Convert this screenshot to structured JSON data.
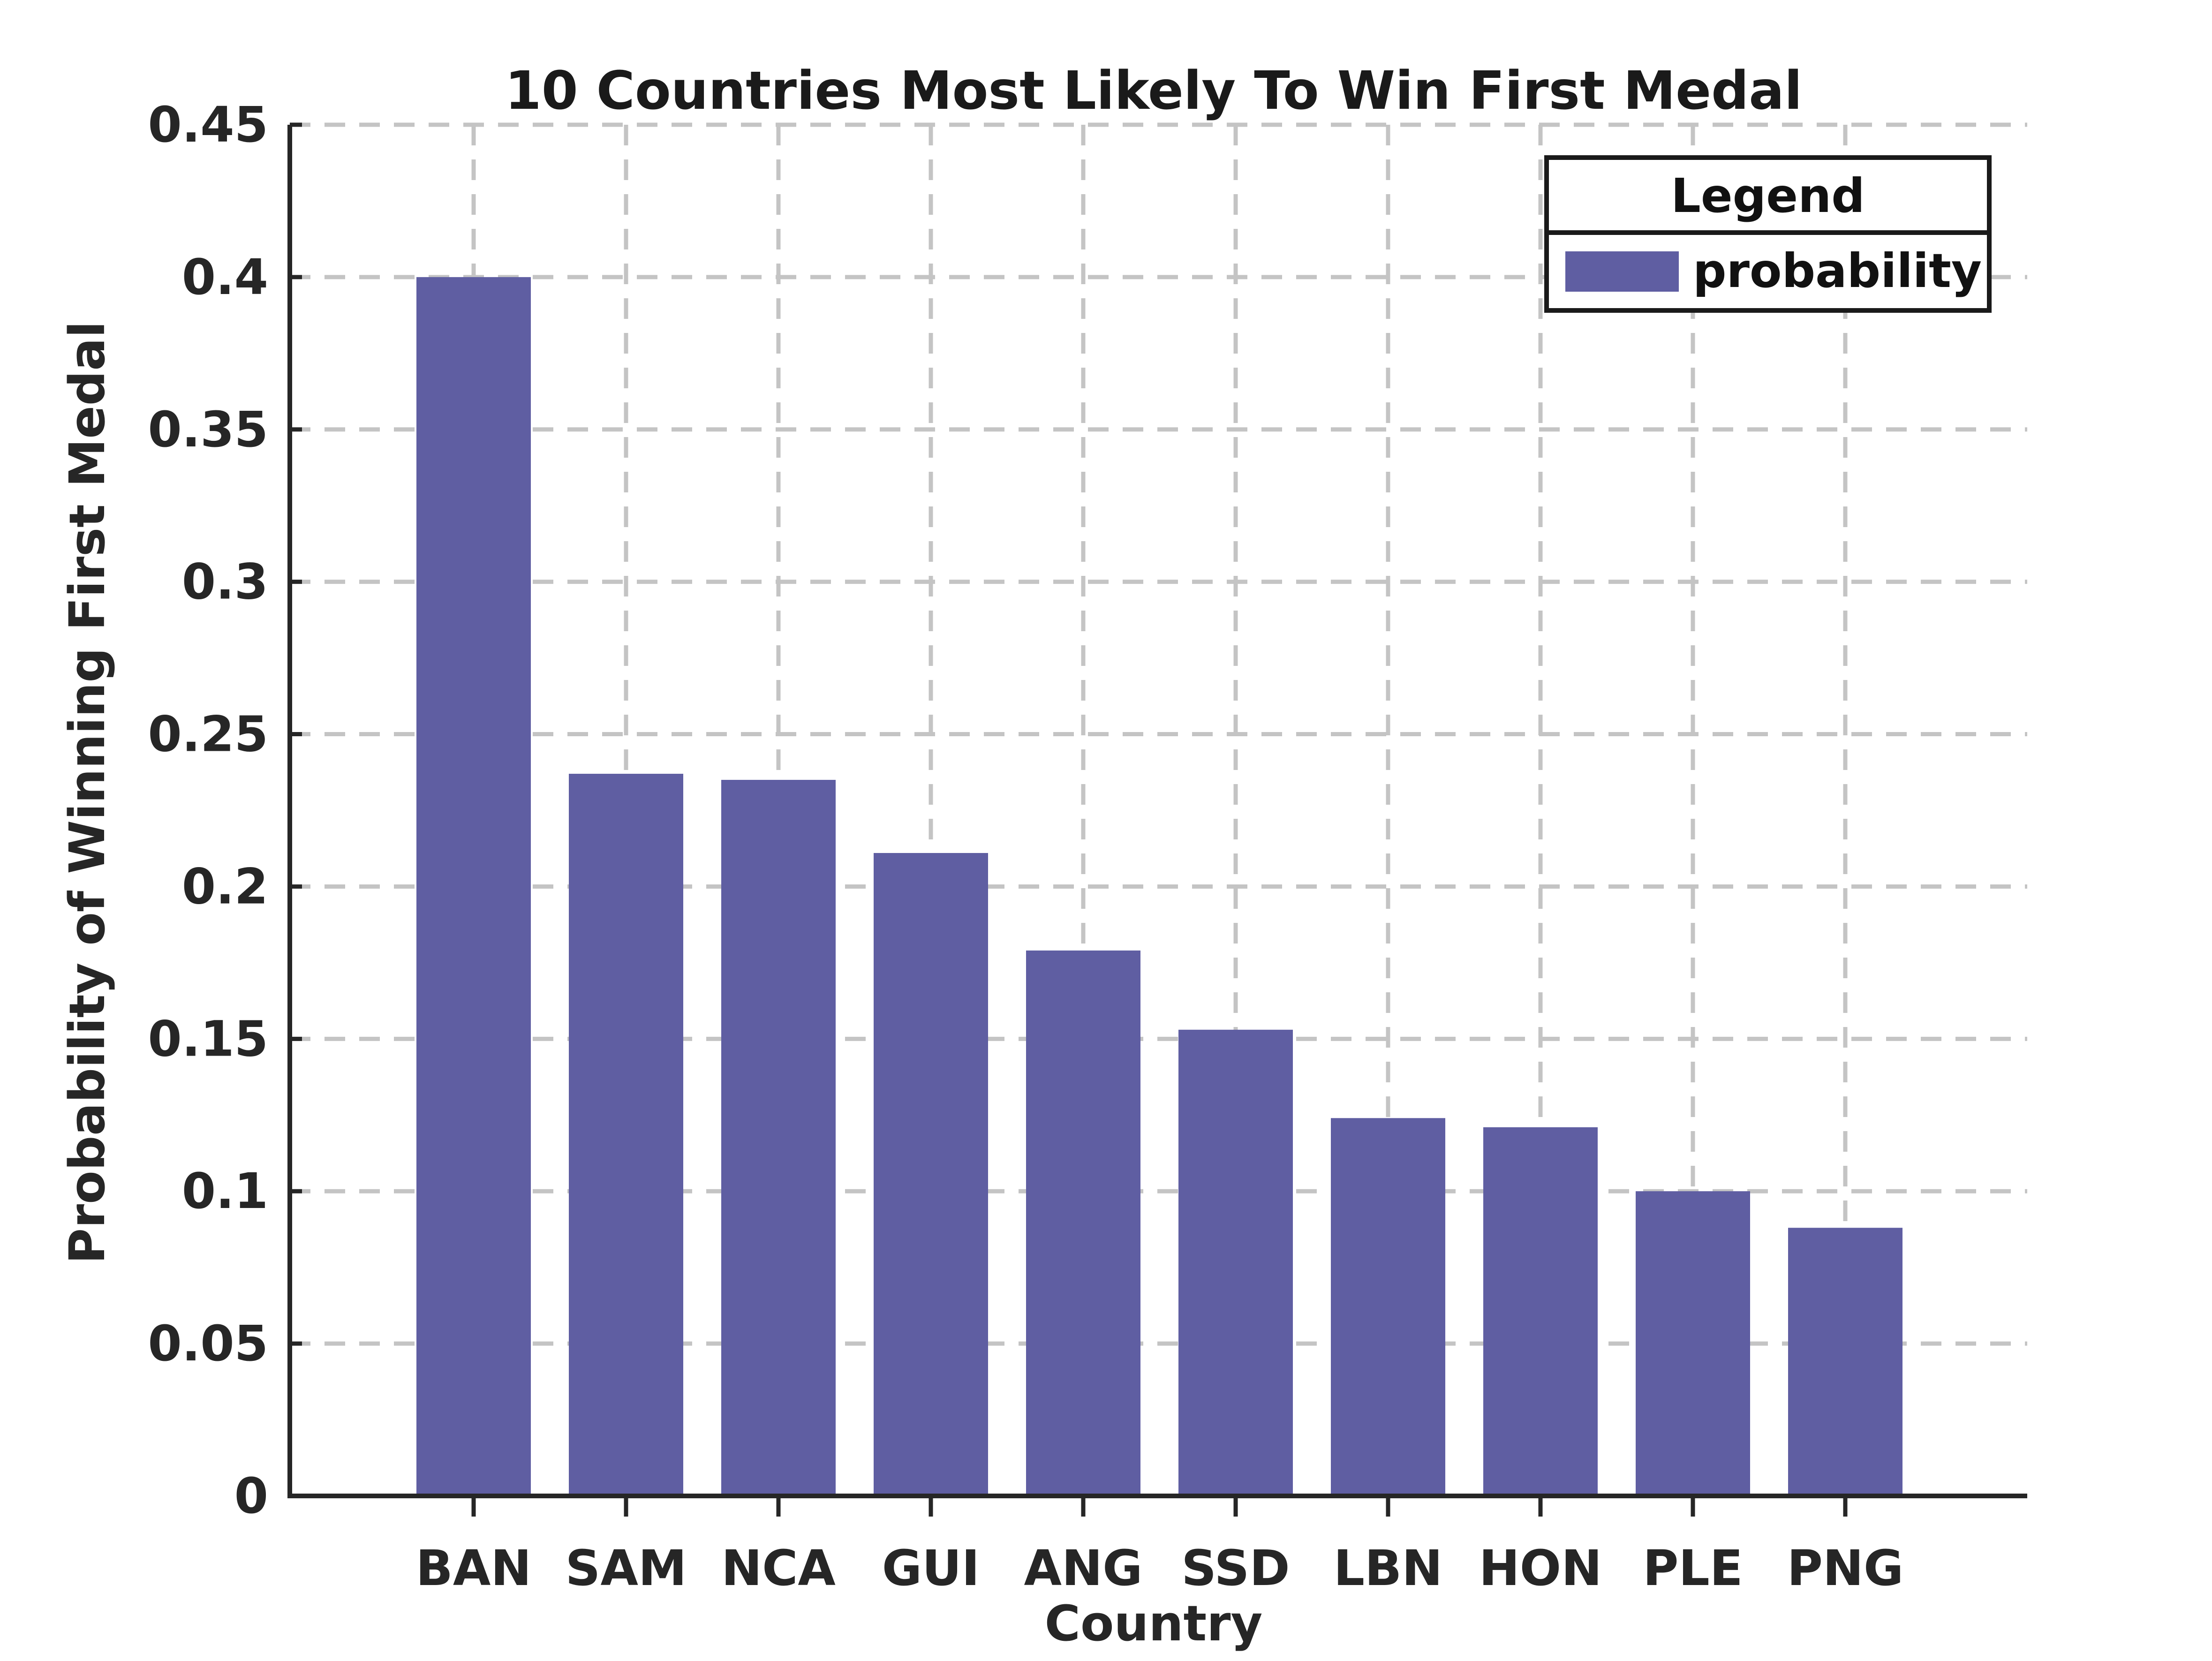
{
  "chart_data": {
    "type": "bar",
    "title": "10 Countries Most Likely To Win First Medal",
    "xlabel": "Country",
    "ylabel": "Probability of Winning First Medal",
    "categories": [
      "BAN",
      "SAM",
      "NCA",
      "GUI",
      "ANG",
      "SSD",
      "LBN",
      "HON",
      "PLE",
      "PNG"
    ],
    "series": [
      {
        "name": "probability",
        "values": [
          0.4,
          0.237,
          0.235,
          0.211,
          0.179,
          0.153,
          0.124,
          0.121,
          0.1,
          0.088
        ],
        "color": "#5f5ea2"
      }
    ],
    "ylim": [
      0,
      0.45
    ],
    "yticks": [
      0,
      0.05,
      0.1,
      0.15,
      0.2,
      0.25,
      0.3,
      0.35,
      0.4,
      0.45
    ],
    "ytick_labels": [
      "0",
      "0.05",
      "0.1",
      "0.15",
      "0.2",
      "0.25",
      "0.3",
      "0.35",
      "0.4",
      "0.45"
    ],
    "grid": true,
    "grid_style": "dashed",
    "legend": {
      "title": "Legend",
      "placement": "top-right"
    }
  }
}
